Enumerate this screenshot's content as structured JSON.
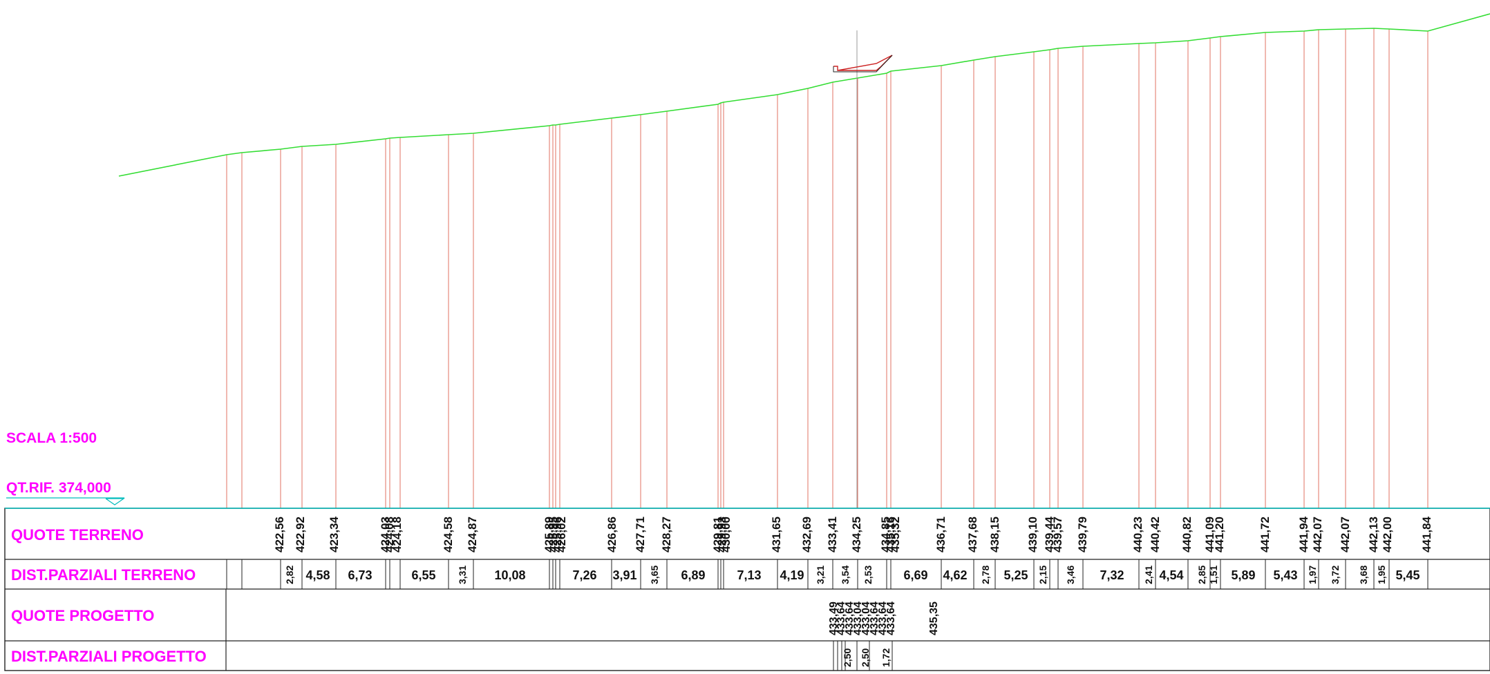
{
  "scale_label": "SCALA 1:500",
  "ref_label": "QT.RIF. 374,000",
  "row_labels": {
    "quote_terreno": "QUOTE TERRENO",
    "dist_terreno": "DIST.PARZIALI TERRENO",
    "quote_progetto": "QUOTE PROGETTO",
    "dist_progetto": "DIST.PARZIALI PROGETTO"
  },
  "colors": {
    "terrain_line": "#33dd33",
    "station_line": "#e07060",
    "label_magenta": "#ff00ff",
    "table_border": "#00bcbc",
    "project_line": "#cc2222"
  },
  "quote_terreno": [
    "422,56",
    "422,92",
    "423,34",
    "424,03",
    "424,08",
    "424,18",
    "424,58",
    "424,87",
    "425,89",
    "425,95",
    "425,96",
    "426,02",
    "426,86",
    "427,71",
    "428,27",
    "429,81",
    "429,93",
    "430,00",
    "431,65",
    "432,69",
    "433,41",
    "434,25",
    "434,85",
    "435,16",
    "435,32",
    "436,71",
    "437,68",
    "438,15",
    "439,10",
    "439,44",
    "439,57",
    "439,79",
    "440,23",
    "440,42",
    "440,82",
    "441,09",
    "441,20",
    "441,72",
    "441,94",
    "442,07",
    "442,07",
    "442,13",
    "442,00",
    "441,84"
  ],
  "dist_terreno": [
    "2,82",
    "4,58",
    "6,73",
    "6,55",
    "3,31",
    "10,08",
    "7,26",
    "3,91",
    "3,65",
    "6,89",
    "7,13",
    "4,19",
    "3,21",
    "3,54",
    "2,53",
    "6,69",
    "4,62",
    "2,78",
    "5,25",
    "2,15",
    "3,46",
    "7,32",
    "2,41",
    "4,54",
    "2,85",
    "1,51",
    "5,89",
    "5,43",
    "1,97",
    "3,72",
    "3,68",
    "1,95",
    "5,45"
  ],
  "quote_progetto": [
    "433,49",
    "433,64",
    "433,64",
    "433,04",
    "433,04",
    "433,64",
    "433,64",
    "433,64",
    "435,35"
  ],
  "dist_progetto": [
    "2,50",
    "2,50",
    "1,72"
  ]
}
